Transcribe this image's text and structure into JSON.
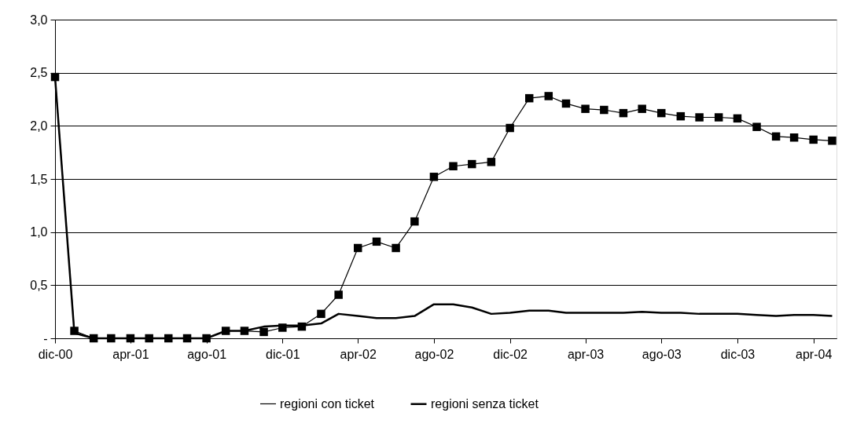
{
  "chart_data": {
    "type": "line",
    "x": [
      "2000-12",
      "2001-01",
      "2001-02",
      "2001-03",
      "2001-04",
      "2001-05",
      "2001-06",
      "2001-07",
      "2001-08",
      "2001-09",
      "2001-10",
      "2001-11",
      "2001-12",
      "2002-01",
      "2002-02",
      "2002-03",
      "2002-04",
      "2002-05",
      "2002-06",
      "2002-07",
      "2002-08",
      "2002-09",
      "2002-10",
      "2002-11",
      "2002-12",
      "2003-01",
      "2003-02",
      "2003-03",
      "2003-04",
      "2003-05",
      "2003-06",
      "2003-07",
      "2003-08",
      "2003-09",
      "2003-10",
      "2003-11",
      "2003-12",
      "2004-01",
      "2004-02",
      "2004-03",
      "2004-04",
      "2004-05"
    ],
    "series": [
      {
        "name": "regioni con ticket",
        "color": "#000000",
        "marker": "square",
        "values": [
          2.46,
          0.07,
          0,
          0,
          0,
          0,
          0,
          0,
          0,
          0.07,
          0.07,
          0.06,
          0.1,
          0.11,
          0.23,
          0.41,
          0.85,
          0.91,
          0.85,
          1.1,
          1.52,
          1.62,
          1.64,
          1.66,
          1.98,
          2.26,
          2.28,
          2.21,
          2.16,
          2.15,
          2.12,
          2.16,
          2.12,
          2.09,
          2.08,
          2.08,
          2.07,
          1.99,
          1.9,
          1.89,
          1.87,
          1.86
        ]
      },
      {
        "name": "regioni senza ticket",
        "color": "#000000",
        "marker": "none",
        "values": [
          2.46,
          0.05,
          0,
          0,
          0,
          0,
          0,
          0,
          0,
          0.07,
          0.07,
          0.11,
          0.12,
          0.12,
          0.14,
          0.23,
          0.21,
          0.19,
          0.19,
          0.21,
          0.32,
          0.32,
          0.29,
          0.23,
          0.24,
          0.26,
          0.26,
          0.24,
          0.24,
          0.24,
          0.24,
          0.25,
          0.24,
          0.24,
          0.23,
          0.23,
          0.23,
          0.22,
          0.21,
          0.22,
          0.22,
          0.21
        ]
      }
    ],
    "xlim": [
      "2000-12",
      "2004-05-08"
    ],
    "xticks": [
      {
        "value": "2000-12",
        "label": "dic-00"
      },
      {
        "value": "2001-04",
        "label": "apr-01"
      },
      {
        "value": "2001-08",
        "label": "ago-01"
      },
      {
        "value": "2001-12",
        "label": "dic-01"
      },
      {
        "value": "2002-04",
        "label": "apr-02"
      },
      {
        "value": "2002-08",
        "label": "ago-02"
      },
      {
        "value": "2002-12",
        "label": "dic-02"
      },
      {
        "value": "2003-04",
        "label": "apr-03"
      },
      {
        "value": "2003-08",
        "label": "ago-03"
      },
      {
        "value": "2003-12",
        "label": "dic-03"
      },
      {
        "value": "2004-04",
        "label": "apr-04"
      }
    ],
    "ylim": [
      0,
      3
    ],
    "yticks": [
      {
        "value": 0,
        "label": "-"
      },
      {
        "value": 0.5,
        "label": "0,5"
      },
      {
        "value": 1,
        "label": "1,0"
      },
      {
        "value": 1.5,
        "label": "1,5"
      },
      {
        "value": 2,
        "label": "2,0"
      },
      {
        "value": 2.5,
        "label": "2,5"
      },
      {
        "value": 3,
        "label": "3,0"
      }
    ],
    "grid": "y",
    "legend": "bottom"
  }
}
